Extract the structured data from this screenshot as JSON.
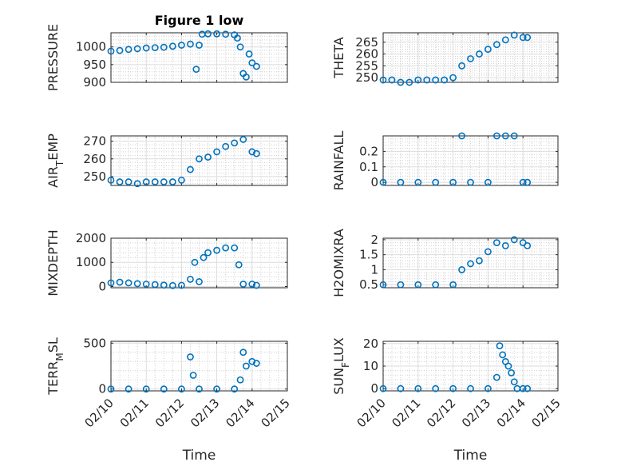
{
  "figure": {
    "title": "Figure 1 low",
    "marker_color": "#0072BD"
  },
  "chart_data": [
    {
      "type": "scatter",
      "title": "Figure 1 low",
      "ylabel": "PRESSURE",
      "xlabel": "",
      "xlim": [
        "02/10",
        "02/15"
      ],
      "ylim": [
        900,
        1040
      ],
      "yticks": [
        900,
        950,
        1000
      ],
      "xticks": [],
      "grid": "on",
      "x": [
        "02/10 00:00",
        "02/10 06:00",
        "02/10 12:00",
        "02/10 18:00",
        "02/11 00:00",
        "02/11 06:00",
        "02/11 12:00",
        "02/11 18:00",
        "02/12 00:00",
        "02/12 06:00",
        "02/12 10:00",
        "02/12 12:00",
        "02/12 14:00",
        "02/12 18:00",
        "02/13 00:00",
        "02/13 06:00",
        "02/13 12:00",
        "02/13 14:00",
        "02/13 16:00",
        "02/13 18:00",
        "02/13 20:00",
        "02/13 22:00",
        "02/14 00:00",
        "02/14 03:00"
      ],
      "y": [
        988,
        990,
        993,
        995,
        997,
        998,
        999,
        1002,
        1005,
        1008,
        937,
        1005,
        1036,
        1037,
        1037,
        1036,
        1034,
        1025,
        1000,
        925,
        915,
        980,
        955,
        945
      ]
    },
    {
      "type": "scatter",
      "title": "",
      "ylabel": "THETA",
      "xlabel": "",
      "xlim": [
        "02/10",
        "02/15"
      ],
      "ylim": [
        248,
        269
      ],
      "yticks": [
        250,
        255,
        260,
        265
      ],
      "xticks": [],
      "grid": "on",
      "x": [
        "02/10 00:00",
        "02/10 06:00",
        "02/10 12:00",
        "02/10 18:00",
        "02/11 00:00",
        "02/11 06:00",
        "02/11 12:00",
        "02/11 18:00",
        "02/12 00:00",
        "02/12 06:00",
        "02/12 12:00",
        "02/12 18:00",
        "02/13 00:00",
        "02/13 06:00",
        "02/13 12:00",
        "02/13 18:00",
        "02/14 00:00",
        "02/14 03:00"
      ],
      "y": [
        249,
        249,
        248,
        248,
        249,
        249,
        249,
        249,
        250,
        255,
        258,
        260,
        262,
        264,
        266,
        268,
        267,
        267
      ]
    },
    {
      "type": "scatter",
      "title": "",
      "ylabel": "AIR_TEMP",
      "xlabel": "",
      "xlim": [
        "02/10",
        "02/15"
      ],
      "ylim": [
        245,
        273
      ],
      "yticks": [
        250,
        260,
        270
      ],
      "xticks": [],
      "grid": "on",
      "x": [
        "02/10 00:00",
        "02/10 06:00",
        "02/10 12:00",
        "02/10 18:00",
        "02/11 00:00",
        "02/11 06:00",
        "02/11 12:00",
        "02/11 18:00",
        "02/12 00:00",
        "02/12 06:00",
        "02/12 12:00",
        "02/12 18:00",
        "02/13 00:00",
        "02/13 06:00",
        "02/13 12:00",
        "02/13 18:00",
        "02/14 00:00",
        "02/14 03:00"
      ],
      "y": [
        248,
        247,
        247,
        246,
        247,
        247,
        247,
        247,
        248,
        254,
        260,
        261,
        264,
        267,
        269,
        271,
        264,
        263
      ]
    },
    {
      "type": "scatter",
      "title": "",
      "ylabel": "RAINFALL",
      "xlabel": "",
      "xlim": [
        "02/10",
        "02/15"
      ],
      "ylim": [
        -0.02,
        0.3
      ],
      "yticks": [
        0,
        0.1,
        0.2
      ],
      "xticks": [],
      "grid": "on",
      "x": [
        "02/10 00:00",
        "02/10 12:00",
        "02/11 00:00",
        "02/11 12:00",
        "02/12 00:00",
        "02/12 06:00",
        "02/12 12:00",
        "02/13 00:00",
        "02/13 06:00",
        "02/13 12:00",
        "02/13 18:00",
        "02/14 00:00",
        "02/14 03:00"
      ],
      "y": [
        0,
        0,
        0,
        0,
        0,
        0.3,
        0,
        0,
        0.3,
        0.3,
        0.3,
        0,
        0
      ]
    },
    {
      "type": "scatter",
      "title": "",
      "ylabel": "MIXDEPTH",
      "xlabel": "",
      "xlim": [
        "02/10",
        "02/15"
      ],
      "ylim": [
        -50,
        2000
      ],
      "yticks": [
        0,
        1000,
        2000
      ],
      "xticks": [],
      "grid": "on",
      "x": [
        "02/10 00:00",
        "02/10 06:00",
        "02/10 12:00",
        "02/10 18:00",
        "02/11 00:00",
        "02/11 06:00",
        "02/11 12:00",
        "02/11 18:00",
        "02/12 00:00",
        "02/12 06:00",
        "02/12 09:00",
        "02/12 12:00",
        "02/12 15:00",
        "02/12 18:00",
        "02/13 00:00",
        "02/13 06:00",
        "02/13 12:00",
        "02/13 15:00",
        "02/13 18:00",
        "02/14 00:00",
        "02/14 03:00"
      ],
      "y": [
        150,
        180,
        150,
        120,
        100,
        80,
        60,
        40,
        50,
        300,
        1000,
        200,
        1200,
        1400,
        1500,
        1600,
        1600,
        900,
        100,
        100,
        50
      ]
    },
    {
      "type": "scatter",
      "title": "",
      "ylabel": "H2OMIXRA",
      "xlabel": "",
      "xlim": [
        "02/10",
        "02/15"
      ],
      "ylim": [
        0.4,
        2.05
      ],
      "yticks": [
        0.5,
        1,
        1.5,
        2
      ],
      "xticks": [],
      "grid": "on",
      "x": [
        "02/10 00:00",
        "02/10 12:00",
        "02/11 00:00",
        "02/11 12:00",
        "02/12 00:00",
        "02/12 06:00",
        "02/12 12:00",
        "02/12 18:00",
        "02/13 00:00",
        "02/13 06:00",
        "02/13 12:00",
        "02/13 18:00",
        "02/14 00:00",
        "02/14 03:00"
      ],
      "y": [
        0.5,
        0.5,
        0.5,
        0.5,
        0.5,
        1.0,
        1.2,
        1.3,
        1.6,
        1.9,
        1.8,
        2.0,
        1.9,
        1.8
      ]
    },
    {
      "type": "scatter",
      "title": "",
      "ylabel": "TERR_MSL",
      "xlabel": "Time",
      "xlim": [
        "02/10",
        "02/15"
      ],
      "ylim": [
        -20,
        520
      ],
      "yticks": [
        0,
        500
      ],
      "xticks": [
        "02/10",
        "02/11",
        "02/12",
        "02/13",
        "02/14",
        "02/15"
      ],
      "grid": "on",
      "x": [
        "02/10 00:00",
        "02/10 12:00",
        "02/11 00:00",
        "02/11 12:00",
        "02/12 00:00",
        "02/12 06:00",
        "02/12 08:00",
        "02/12 12:00",
        "02/13 00:00",
        "02/13 12:00",
        "02/13 16:00",
        "02/13 18:00",
        "02/13 20:00",
        "02/14 00:00",
        "02/14 03:00"
      ],
      "y": [
        0,
        0,
        0,
        0,
        0,
        350,
        150,
        0,
        0,
        0,
        100,
        400,
        250,
        300,
        280
      ]
    },
    {
      "type": "scatter",
      "title": "",
      "ylabel": "SUN_FLUX",
      "xlabel": "Time",
      "xlim": [
        "02/10",
        "02/15"
      ],
      "ylim": [
        -1,
        21
      ],
      "yticks": [
        0,
        10,
        20
      ],
      "xticks": [
        "02/10",
        "02/11",
        "02/12",
        "02/13",
        "02/14",
        "02/15"
      ],
      "grid": "on",
      "x": [
        "02/10 00:00",
        "02/10 12:00",
        "02/11 00:00",
        "02/11 12:00",
        "02/12 00:00",
        "02/12 12:00",
        "02/13 00:00",
        "02/13 06:00",
        "02/13 08:00",
        "02/13 10:00",
        "02/13 12:00",
        "02/13 14:00",
        "02/13 16:00",
        "02/13 18:00",
        "02/13 20:00",
        "02/14 00:00",
        "02/14 03:00"
      ],
      "y": [
        0,
        0,
        0,
        0,
        0,
        0,
        0,
        5,
        19,
        15,
        12,
        10,
        7,
        3,
        0,
        0,
        0
      ]
    }
  ]
}
